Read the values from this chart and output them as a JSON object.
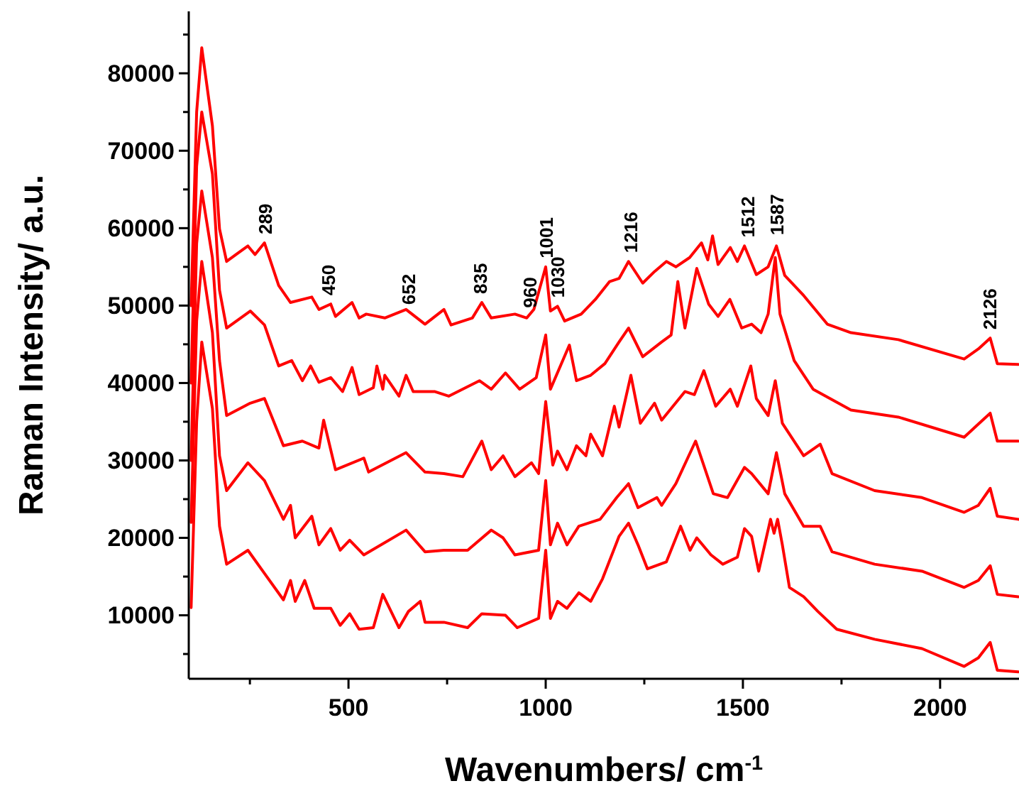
{
  "chart_data": {
    "type": "line",
    "xlabel": "Wavenumbers/ cm$^{-1}$",
    "ylabel": "Raman Intensity/ a.u.",
    "xlim": [
      95,
      2200
    ],
    "ylim": [
      1800,
      88000
    ],
    "xticks": [
      {
        "value": 250,
        "label": null
      },
      500,
      {
        "value": 750,
        "label": null
      },
      1000,
      {
        "value": 1250,
        "label": null
      },
      1500,
      {
        "value": 1750,
        "label": null
      },
      2000
    ],
    "yticks": [
      {
        "value": 5000,
        "label": null
      },
      10000,
      {
        "value": 15000,
        "label": null
      },
      20000,
      {
        "value": 25000,
        "label": null
      },
      30000,
      {
        "value": 35000,
        "label": null
      },
      40000,
      {
        "value": 45000,
        "label": null
      },
      50000,
      {
        "value": 55000,
        "label": null
      },
      60000,
      {
        "value": 65000,
        "label": null
      },
      70000,
      {
        "value": 75000,
        "label": null
      },
      80000,
      {
        "value": 85000,
        "label": null
      }
    ],
    "series": [
      {
        "color": "#ff0000",
        "x": [
          101,
          115,
          128,
          155,
          173,
          191,
          215,
          245,
          263,
          287,
          323,
          353,
          407,
          425,
          455,
          467,
          509,
          527,
          545,
          592,
          646,
          694,
          742,
          760,
          814,
          838,
          862,
          922,
          952,
          970,
          1000,
          1012,
          1030,
          1048,
          1090,
          1126,
          1162,
          1186,
          1210,
          1246,
          1276,
          1306,
          1330,
          1365,
          1395,
          1411,
          1423,
          1437,
          1468,
          1486,
          1504,
          1534,
          1564,
          1585,
          1606,
          1654,
          1714,
          1774,
          1894,
          2061,
          2097,
          2127,
          2145,
          2198
        ],
        "values": [
          50000,
          75000,
          83300,
          73200,
          59900,
          55700,
          56600,
          57700,
          56600,
          58100,
          52600,
          50400,
          51100,
          49500,
          50200,
          48600,
          50400,
          48400,
          48900,
          48400,
          49500,
          47600,
          49500,
          47500,
          48400,
          50400,
          48400,
          48900,
          48400,
          49500,
          55000,
          49300,
          49900,
          48000,
          48900,
          50800,
          53100,
          53500,
          55700,
          52900,
          54400,
          55700,
          55000,
          56200,
          58100,
          55900,
          59000,
          55300,
          57500,
          55700,
          57700,
          54000,
          55000,
          57700,
          53900,
          51300,
          47600,
          46500,
          45600,
          43100,
          44400,
          45800,
          42500,
          42400
        ]
      },
      {
        "color": "#ff0000",
        "x": [
          101,
          115,
          128,
          155,
          173,
          191,
          251,
          287,
          323,
          356,
          383,
          404,
          425,
          455,
          485,
          509,
          527,
          563,
          572,
          587,
          592,
          628,
          646,
          664,
          718,
          754,
          832,
          862,
          898,
          934,
          976,
          1000,
          1012,
          1060,
          1078,
          1114,
          1150,
          1186,
          1210,
          1246,
          1294,
          1318,
          1335,
          1353,
          1383,
          1413,
          1437,
          1467,
          1497,
          1522,
          1546,
          1564,
          1582,
          1594,
          1630,
          1678,
          1774,
          1894,
          2061,
          2097,
          2127,
          2145,
          2198
        ],
        "values": [
          40000,
          68000,
          75000,
          67000,
          52000,
          47100,
          49300,
          47500,
          42200,
          42900,
          40300,
          42200,
          40100,
          40700,
          38900,
          42000,
          38500,
          39400,
          42200,
          39200,
          41000,
          38300,
          41000,
          38900,
          38900,
          38300,
          40300,
          39200,
          41300,
          39200,
          40700,
          46200,
          39200,
          44900,
          40300,
          41000,
          42500,
          45300,
          47100,
          43400,
          45300,
          46200,
          53100,
          47100,
          54800,
          50200,
          48600,
          50800,
          47100,
          47600,
          46500,
          48900,
          56200,
          48900,
          42900,
          39200,
          36500,
          35600,
          33000,
          34700,
          36100,
          32500,
          32500
        ]
      },
      {
        "color": "#ff0000",
        "x": [
          101,
          115,
          128,
          155,
          173,
          191,
          251,
          287,
          335,
          383,
          425,
          437,
          467,
          539,
          551,
          646,
          694,
          742,
          790,
          838,
          862,
          892,
          922,
          964,
          982,
          1000,
          1018,
          1030,
          1054,
          1078,
          1102,
          1114,
          1144,
          1174,
          1186,
          1216,
          1240,
          1276,
          1294,
          1353,
          1377,
          1401,
          1431,
          1468,
          1486,
          1520,
          1534,
          1564,
          1582,
          1600,
          1654,
          1696,
          1726,
          1834,
          1954,
          2061,
          2097,
          2127,
          2145,
          2198
        ],
        "values": [
          30000,
          58000,
          64800,
          56200,
          42900,
          35800,
          37400,
          38000,
          31900,
          32500,
          31600,
          35200,
          28800,
          30300,
          28500,
          31000,
          28500,
          28300,
          27900,
          32500,
          28800,
          30600,
          27900,
          29700,
          28300,
          37600,
          29400,
          31200,
          28800,
          31900,
          30600,
          33400,
          30600,
          37000,
          34300,
          41000,
          34800,
          37400,
          35200,
          38900,
          38500,
          41600,
          37000,
          39200,
          37000,
          42200,
          38000,
          35800,
          40300,
          34800,
          30600,
          32100,
          28300,
          26100,
          25200,
          23300,
          24200,
          26400,
          22800,
          22400
        ]
      },
      {
        "color": "#ff0000",
        "x": [
          101,
          115,
          128,
          155,
          173,
          191,
          245,
          287,
          335,
          353,
          365,
          407,
          425,
          455,
          479,
          503,
          539,
          646,
          694,
          742,
          802,
          862,
          892,
          922,
          982,
          1000,
          1012,
          1030,
          1054,
          1084,
          1138,
          1180,
          1210,
          1234,
          1282,
          1294,
          1330,
          1380,
          1425,
          1461,
          1504,
          1522,
          1564,
          1585,
          1606,
          1654,
          1696,
          1726,
          1834,
          1954,
          2061,
          2097,
          2127,
          2145,
          2198
        ],
        "values": [
          22000,
          48000,
          55700,
          46500,
          30600,
          26100,
          29700,
          27400,
          22400,
          24200,
          20000,
          22800,
          19100,
          21200,
          18400,
          19700,
          17800,
          21000,
          18200,
          18400,
          18400,
          21000,
          20000,
          17800,
          18400,
          27400,
          19100,
          21900,
          19100,
          21500,
          22400,
          25200,
          27000,
          23900,
          25200,
          24200,
          27000,
          32500,
          25700,
          25200,
          29100,
          28300,
          25700,
          31000,
          25700,
          21500,
          21500,
          18200,
          16600,
          15700,
          13600,
          14500,
          16400,
          12700,
          12400
        ]
      },
      {
        "color": "#ff0000",
        "x": [
          101,
          115,
          128,
          155,
          173,
          191,
          245,
          287,
          335,
          353,
          365,
          389,
          413,
          455,
          479,
          503,
          527,
          563,
          587,
          628,
          652,
          682,
          694,
          742,
          802,
          838,
          898,
          928,
          982,
          1000,
          1012,
          1030,
          1054,
          1084,
          1114,
          1144,
          1186,
          1210,
          1234,
          1258,
          1306,
          1342,
          1366,
          1383,
          1419,
          1449,
          1486,
          1504,
          1522,
          1540,
          1570,
          1579,
          1588,
          1600,
          1618,
          1654,
          1690,
          1738,
          1834,
          1954,
          2061,
          2097,
          2127,
          2145,
          2198
        ],
        "values": [
          11000,
          35000,
          45300,
          36700,
          21500,
          16600,
          18400,
          15400,
          12000,
          14500,
          11800,
          14500,
          10900,
          10900,
          8700,
          10200,
          8200,
          8400,
          12700,
          8400,
          10500,
          11800,
          9100,
          9100,
          8400,
          10200,
          10000,
          8400,
          9600,
          18400,
          9600,
          11800,
          10900,
          12900,
          11800,
          14700,
          20200,
          21900,
          19100,
          16000,
          16900,
          21500,
          18400,
          20000,
          17800,
          16600,
          17500,
          21200,
          20200,
          15700,
          22400,
          20600,
          22400,
          19100,
          13600,
          12400,
          10500,
          8200,
          6900,
          5700,
          3400,
          4500,
          6500,
          2900,
          2700
        ]
      }
    ],
    "annotations": [
      {
        "text": "289",
        "x": 289,
        "y": 58100
      },
      {
        "text": "450",
        "x": 450,
        "y": 50200
      },
      {
        "text": "652",
        "x": 652,
        "y": 49000
      },
      {
        "text": "835",
        "x": 835,
        "y": 50400
      },
      {
        "text": "960",
        "x": 960,
        "y": 48600
      },
      {
        "text": "1001",
        "x": 1001,
        "y": 55000
      },
      {
        "text": "1030",
        "x": 1030,
        "y": 49900
      },
      {
        "text": "1216",
        "x": 1216,
        "y": 55700
      },
      {
        "text": "1512",
        "x": 1512,
        "y": 57700
      },
      {
        "text": "1587",
        "x": 1587,
        "y": 58000
      },
      {
        "text": "2126",
        "x": 2126,
        "y": 45800
      }
    ]
  }
}
